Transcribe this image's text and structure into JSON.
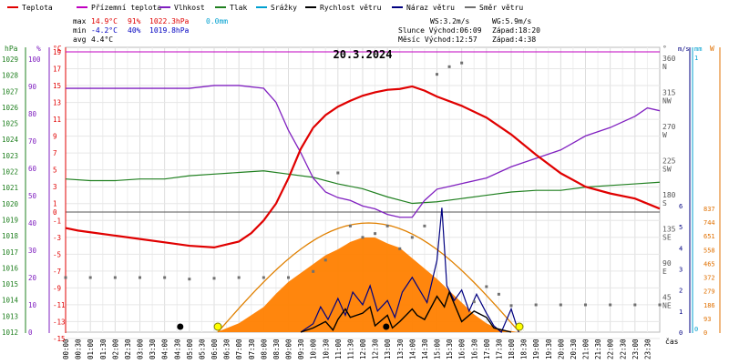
{
  "chart_data": {
    "type": "line",
    "title": "20.3.2024",
    "legend": [
      {
        "name": "Teplota",
        "color": "#e00000"
      },
      {
        "name": "Přízemní teplota",
        "color": "#c000c0"
      },
      {
        "name": "Vlhkost",
        "color": "#8020c0"
      },
      {
        "name": "Tlak",
        "color": "#208020"
      },
      {
        "name": "Srážky",
        "color": "#00a0d0"
      },
      {
        "name": "Rychlost větru",
        "color": "#000000"
      },
      {
        "name": "Náraz větru",
        "color": "#000080"
      },
      {
        "name": "Směr větru",
        "color": "#707070"
      }
    ],
    "stats": {
      "max_label": "max",
      "min_label": "min",
      "avg_label": "avg",
      "max_temp": "14.9°C",
      "max_hum": "91%",
      "max_press": "1022.3hPa",
      "max_rain": "0.0mm",
      "min_temp": "-4.2°C",
      "min_hum": "40%",
      "min_press": "1019.8hPa",
      "avg_temp": "4.4°C",
      "ws": "WS:3.2m/s",
      "wg": "WG:5.9m/s",
      "sun": "Slunce Východ:06:09",
      "sun_set": "Západ:18:20",
      "moon": "Měsíc  Východ:12:57",
      "moon_set": "Západ:4:38"
    },
    "axes": {
      "hpa_label": "hPa",
      "pct_label": "%",
      "degc_label": "°C",
      "deg_label": "°",
      "ms_label": "m/s",
      "mm_label": "mm",
      "w_label": "W",
      "cas_label": "čas",
      "hpa_ticks": [
        "1029",
        "1028",
        "1027",
        "1026",
        "1025",
        "1024",
        "1023",
        "1022",
        "1021",
        "1020",
        "1019",
        "1018",
        "1017",
        "1016",
        "1015",
        "1014",
        "1013",
        "1012"
      ],
      "pct_ticks": [
        "100",
        "90",
        "80",
        "70",
        "60",
        "50",
        "40",
        "30",
        "20",
        "10",
        "0"
      ],
      "temp_ticks": [
        "19",
        "17",
        "15",
        "13",
        "11",
        "9",
        "7",
        "5",
        "3",
        "1",
        "0",
        "-1",
        "-3",
        "-5",
        "-7",
        "-9",
        "-11",
        "-13",
        "-15"
      ],
      "dir_ticks": [
        "360",
        "315",
        "270",
        "225",
        "180",
        "135",
        "90",
        "45"
      ],
      "dir_names": [
        "N",
        "NW",
        "W",
        "SW",
        "S",
        "SE",
        "E",
        "NE"
      ],
      "ms_ticks": [
        "6",
        "5",
        "4",
        "3",
        "2",
        "1",
        "0"
      ],
      "mm_ticks": [
        "1",
        "0"
      ],
      "w_ticks": [
        "837",
        "744",
        "651",
        "558",
        "465",
        "372",
        "279",
        "186",
        "93",
        "0"
      ],
      "time_ticks": [
        "00:00",
        "00:30",
        "01:00",
        "01:30",
        "02:00",
        "02:30",
        "03:00",
        "03:30",
        "04:00",
        "04:30",
        "05:00",
        "05:30",
        "06:00",
        "06:30",
        "07:00",
        "07:30",
        "08:00",
        "08:30",
        "09:00",
        "09:30",
        "10:00",
        "10:30",
        "11:00",
        "11:30",
        "12:00",
        "12:30",
        "13:00",
        "13:30",
        "14:00",
        "14:30",
        "15:00",
        "15:30",
        "16:00",
        "16:30",
        "17:00",
        "17:30",
        "18:00",
        "18:30",
        "19:00",
        "19:30",
        "20:00",
        "20:30",
        "21:00",
        "21:30",
        "22:00",
        "22:30",
        "23:00",
        "23:30"
      ]
    },
    "temperature": {
      "unit": "°C",
      "x_hours": [
        0,
        0.5,
        1,
        2,
        3,
        4,
        5,
        6,
        7,
        7.5,
        8,
        8.5,
        9,
        9.5,
        10,
        10.5,
        11,
        11.5,
        12,
        12.5,
        13,
        13.5,
        14,
        14.5,
        15,
        16,
        17,
        18,
        19,
        20,
        21,
        22,
        23,
        24
      ],
      "y": [
        -1.9,
        -2.2,
        -2.4,
        -2.8,
        -3.2,
        -3.6,
        -4.0,
        -4.2,
        -3.5,
        -2.5,
        -1.0,
        1.0,
        4.0,
        7.5,
        10.0,
        11.5,
        12.5,
        13.2,
        13.8,
        14.2,
        14.5,
        14.6,
        14.9,
        14.4,
        13.7,
        12.6,
        11.2,
        9.2,
        6.8,
        4.6,
        3.0,
        2.2,
        1.6,
        0.4
      ]
    },
    "humidity": {
      "unit": "%",
      "x_hours": [
        0,
        1,
        2,
        3,
        4,
        5,
        6,
        7,
        8,
        8.5,
        9,
        9.5,
        10,
        10.5,
        11,
        11.5,
        12,
        12.5,
        13,
        13.5,
        14,
        14.5,
        15,
        15.5,
        16,
        17,
        18,
        19,
        20,
        21,
        22,
        23,
        23.5,
        24
      ],
      "y": [
        87,
        87,
        87,
        87,
        87,
        87,
        88,
        88,
        87,
        82,
        72,
        64,
        55,
        50,
        48,
        47,
        45,
        44,
        42,
        41,
        41,
        47,
        51,
        52,
        53,
        55,
        59,
        62,
        65,
        70,
        73,
        77,
        80,
        79
      ]
    },
    "pressure": {
      "unit": "hPa",
      "x_hours": [
        0,
        1,
        2,
        3,
        4,
        5,
        6,
        7,
        8,
        9,
        10,
        11,
        12,
        13,
        14,
        15,
        16,
        17,
        18,
        19,
        20,
        21,
        22,
        23,
        24
      ],
      "y": [
        1021.4,
        1021.3,
        1021.3,
        1021.4,
        1021.4,
        1021.6,
        1021.7,
        1021.8,
        1021.9,
        1021.7,
        1021.5,
        1021.1,
        1020.8,
        1020.3,
        1019.9,
        1020.0,
        1020.2,
        1020.4,
        1020.6,
        1020.7,
        1020.7,
        1020.9,
        1021.0,
        1021.1,
        1021.2
      ]
    },
    "solar_radiation": {
      "unit": "W",
      "x_hours": [
        6.1,
        7,
        8,
        8.5,
        9,
        9.5,
        10,
        10.5,
        11,
        11.5,
        12,
        12.5,
        13,
        13.5,
        14,
        14.5,
        15,
        15.5,
        16,
        16.5,
        17,
        17.5,
        18.3
      ],
      "y": [
        0,
        60,
        170,
        260,
        340,
        400,
        460,
        520,
        560,
        610,
        640,
        640,
        600,
        570,
        500,
        430,
        360,
        280,
        200,
        120,
        60,
        20,
        0
      ]
    },
    "wind_speed": {
      "unit": "m/s",
      "x_hours": [
        9.5,
        10,
        10.5,
        10.8,
        11,
        11.3,
        11.5,
        12,
        12.3,
        12.5,
        13,
        13.2,
        13.5,
        14,
        14.2,
        14.5,
        15,
        15.3,
        15.5,
        16,
        16.5,
        17,
        17.3,
        18
      ],
      "y": [
        0,
        0.2,
        0.5,
        0.1,
        0.6,
        1.1,
        0.7,
        0.9,
        1.2,
        0.3,
        0.8,
        0.2,
        0.5,
        1.1,
        0.8,
        0.6,
        1.7,
        1.2,
        1.9,
        0.5,
        1.0,
        0.7,
        0.2,
        0
      ]
    },
    "wind_gust": {
      "unit": "m/s",
      "x_hours": [
        9.5,
        10,
        10.3,
        10.6,
        11,
        11.3,
        11.6,
        12,
        12.3,
        12.6,
        13,
        13.3,
        13.6,
        14,
        14.3,
        14.6,
        15,
        15.2,
        15.4,
        15.7,
        16,
        16.3,
        16.6,
        17,
        17.3,
        17.6,
        18,
        18.3
      ],
      "y": [
        0,
        0.4,
        1.2,
        0.6,
        1.6,
        0.8,
        1.9,
        1.3,
        2.2,
        1.0,
        1.5,
        0.7,
        1.9,
        2.6,
        2.0,
        1.4,
        3.4,
        5.9,
        2.2,
        1.5,
        2.0,
        1.0,
        1.8,
        0.9,
        0.3,
        0,
        1.1,
        0
      ]
    },
    "wind_direction": {
      "unit": "°",
      "x_hours": [
        0,
        1,
        2,
        3,
        4,
        5,
        6,
        7,
        8,
        9,
        10,
        10.5,
        11,
        11.5,
        12,
        12.5,
        13,
        13.5,
        14,
        14.5,
        15,
        15.5,
        16,
        16.5,
        17,
        17.5,
        18,
        19,
        20,
        21,
        22,
        23,
        24
      ],
      "y": [
        72,
        72,
        72,
        72,
        72,
        70,
        71,
        72,
        72,
        72,
        80,
        95,
        210,
        140,
        125,
        130,
        140,
        110,
        125,
        140,
        340,
        350,
        355,
        40,
        60,
        50,
        35,
        36,
        36,
        36,
        36,
        36,
        36
      ]
    },
    "sun_events": {
      "sunrise_hour": 6.15,
      "sunset_hour": 18.33,
      "moonset_hour": 4.63,
      "moonrise_hour": 12.95
    }
  }
}
